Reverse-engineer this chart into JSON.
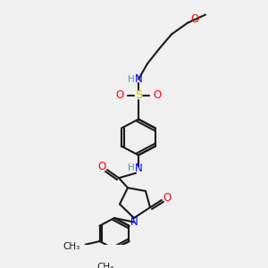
{
  "bg_color": "#f0f0f0",
  "bond_color": "#1a1a1a",
  "atom_colors": {
    "O": "#ff0000",
    "N": "#0000ff",
    "S": "#cccc00",
    "H": "#4a9999",
    "C": "#1a1a1a"
  }
}
